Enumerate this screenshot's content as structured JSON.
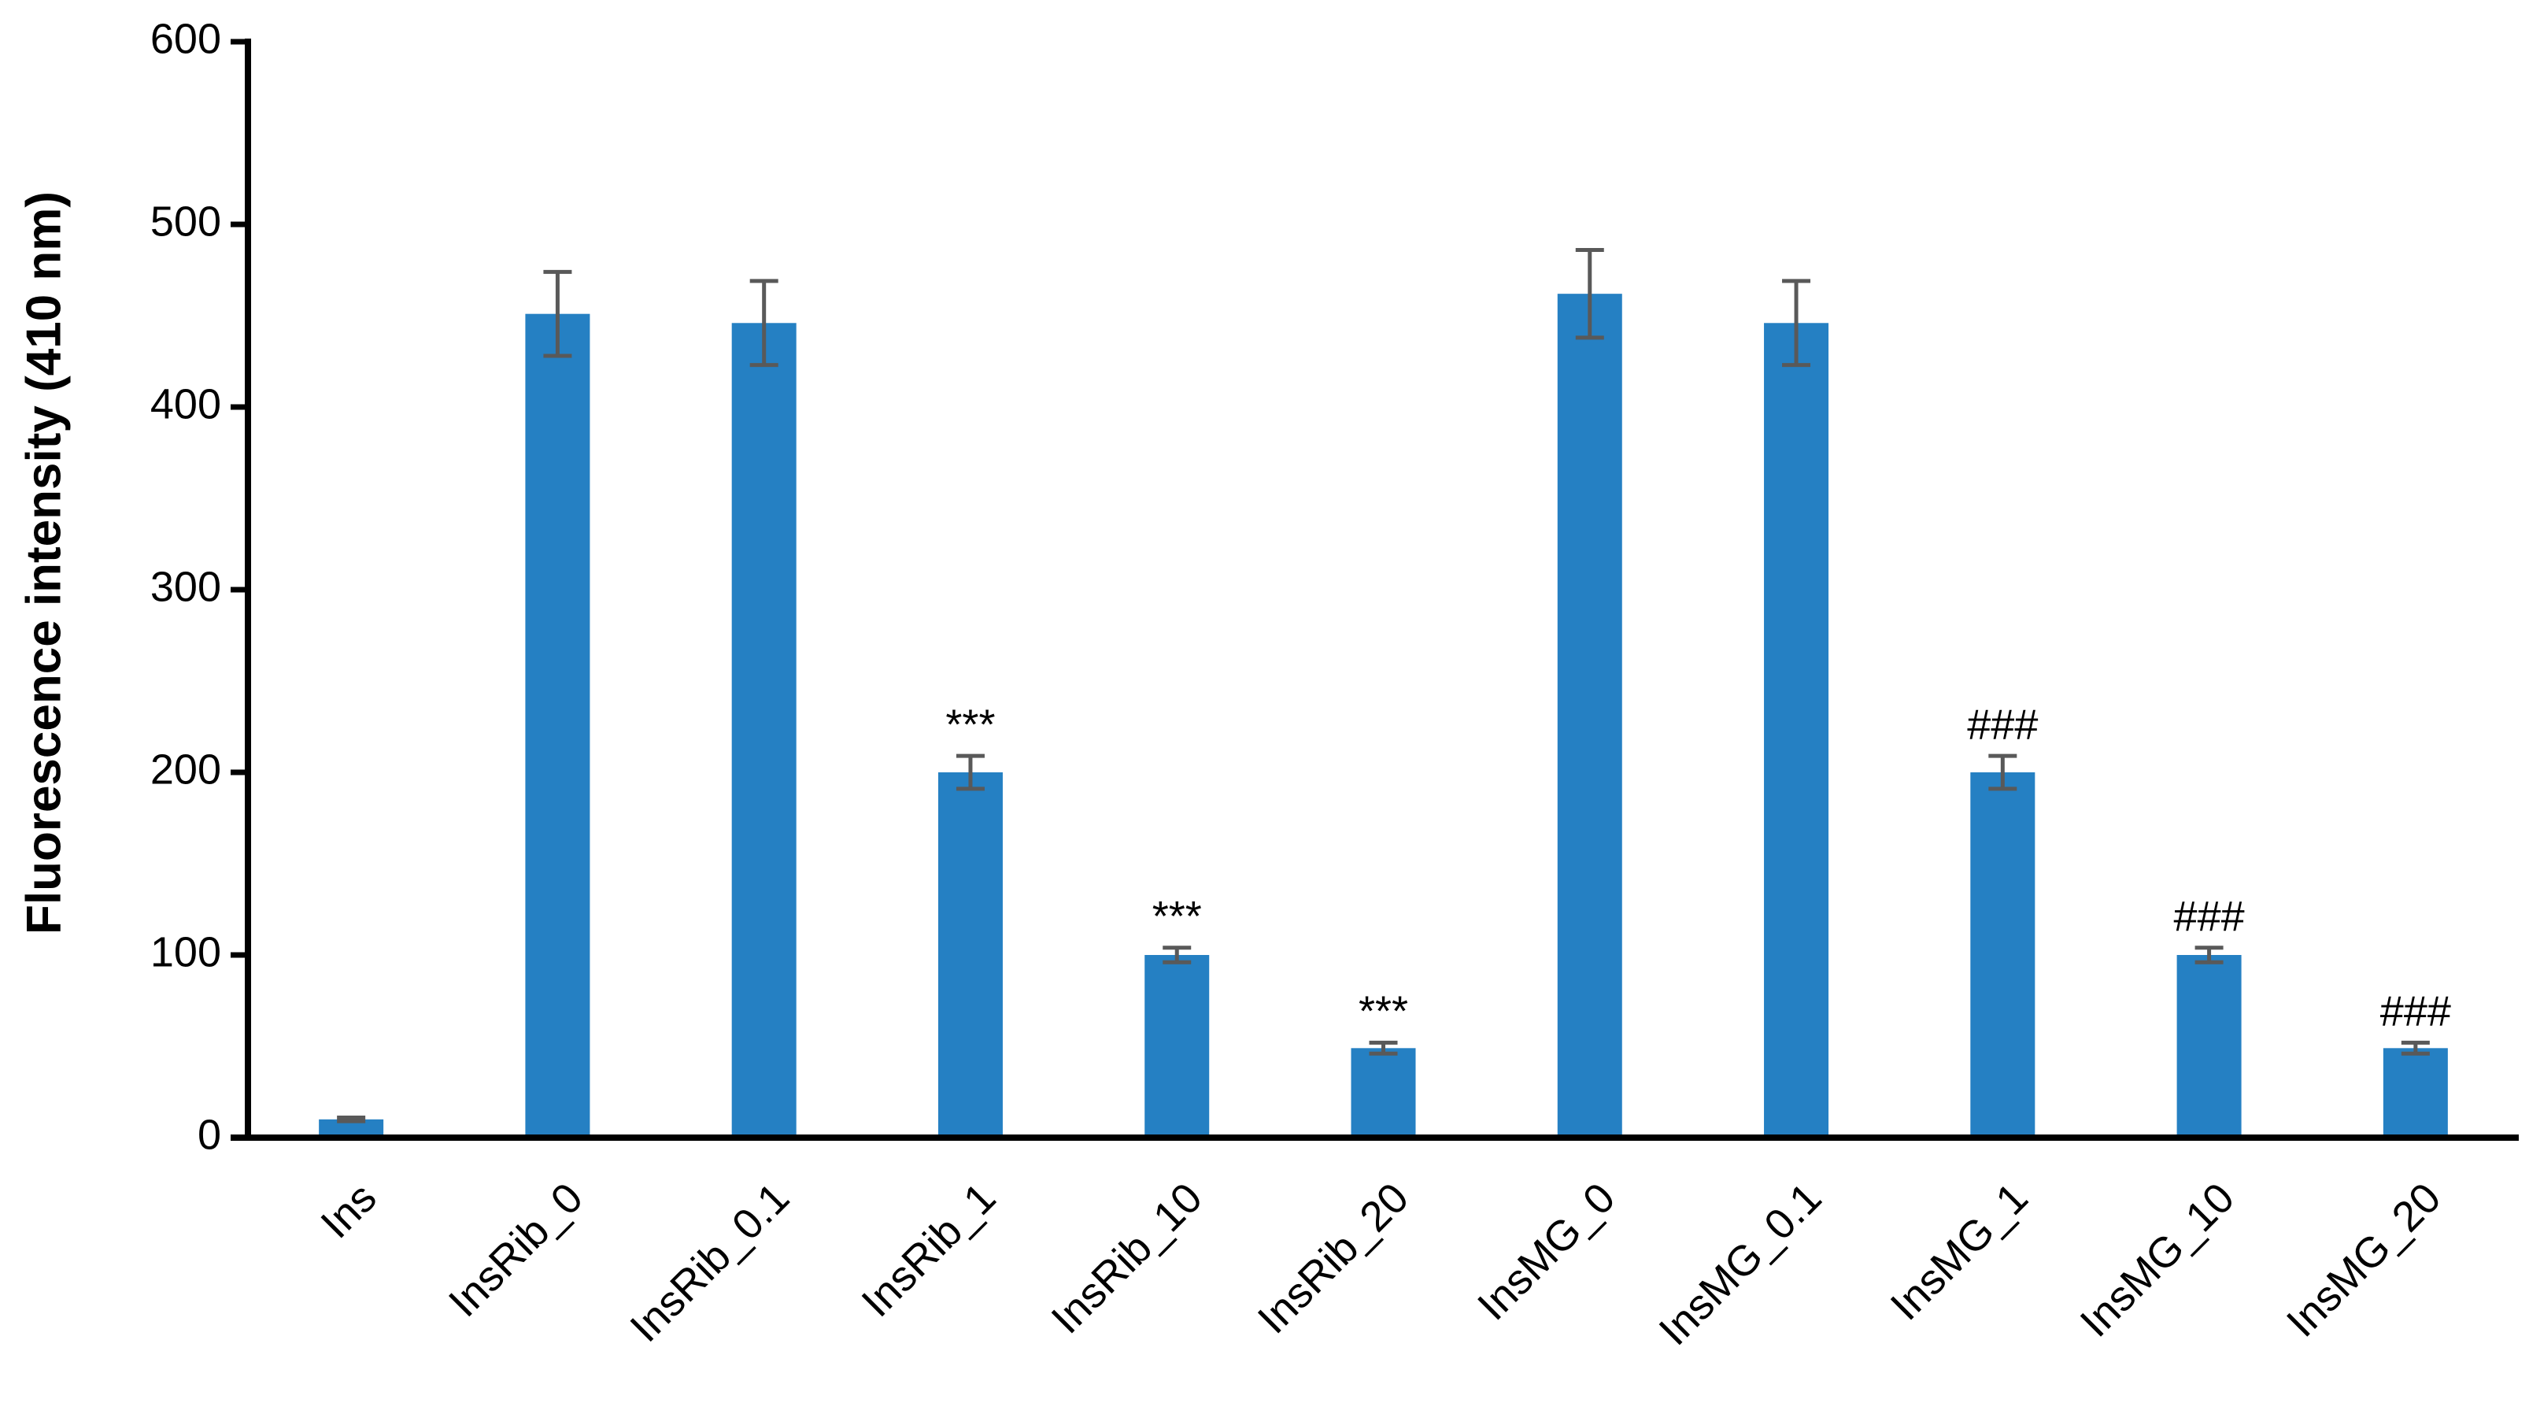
{
  "chart_data": {
    "type": "bar",
    "y_label": "Fluorescence intensity (410 nm)",
    "categories": [
      "Ins",
      "InsRib_0",
      "InsRib_0.1",
      "InsRib_1",
      "InsRib_10",
      "InsRib_20",
      "InsMG_0",
      "InsMG_0.1",
      "InsMG_1",
      "InsMG_10",
      "InsMG_20"
    ],
    "values": [
      10,
      451,
      446,
      200,
      100,
      49,
      462,
      446,
      200,
      100,
      49
    ],
    "errors": [
      1,
      23,
      23,
      9,
      4,
      3,
      24,
      23,
      9,
      4,
      3
    ],
    "significance": [
      null,
      null,
      null,
      "***",
      "***",
      "***",
      null,
      null,
      "###",
      "###",
      "###"
    ],
    "color": "#2580c3",
    "error_color": "#595959",
    "ylim": [
      0,
      600
    ],
    "yticks": [
      0,
      100,
      200,
      300,
      400,
      500,
      600
    ],
    "grid": false
  }
}
